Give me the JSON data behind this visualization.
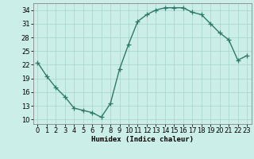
{
  "x": [
    0,
    1,
    2,
    3,
    4,
    5,
    6,
    7,
    8,
    9,
    10,
    11,
    12,
    13,
    14,
    15,
    16,
    17,
    18,
    19,
    20,
    21,
    22,
    23
  ],
  "y": [
    22.5,
    19.5,
    17.0,
    15.0,
    12.5,
    12.0,
    11.5,
    10.5,
    13.5,
    21.0,
    26.5,
    31.5,
    33.0,
    34.0,
    34.5,
    34.5,
    34.5,
    33.5,
    33.0,
    31.0,
    29.0,
    27.5,
    23.0,
    24.0
  ],
  "line_color": "#2d7a6a",
  "marker": "+",
  "markersize": 4,
  "linewidth": 1.0,
  "bg_color": "#cceee8",
  "grid_color": "#aad8d0",
  "xlabel": "Humidex (Indice chaleur)",
  "xlim": [
    -0.5,
    23.5
  ],
  "ylim": [
    9,
    35.5
  ],
  "yticks": [
    10,
    13,
    16,
    19,
    22,
    25,
    28,
    31,
    34
  ],
  "xticks": [
    0,
    1,
    2,
    3,
    4,
    5,
    6,
    7,
    8,
    9,
    10,
    11,
    12,
    13,
    14,
    15,
    16,
    17,
    18,
    19,
    20,
    21,
    22,
    23
  ],
  "xlabel_fontsize": 6.5,
  "tick_fontsize": 6.0,
  "spine_color": "#888888"
}
